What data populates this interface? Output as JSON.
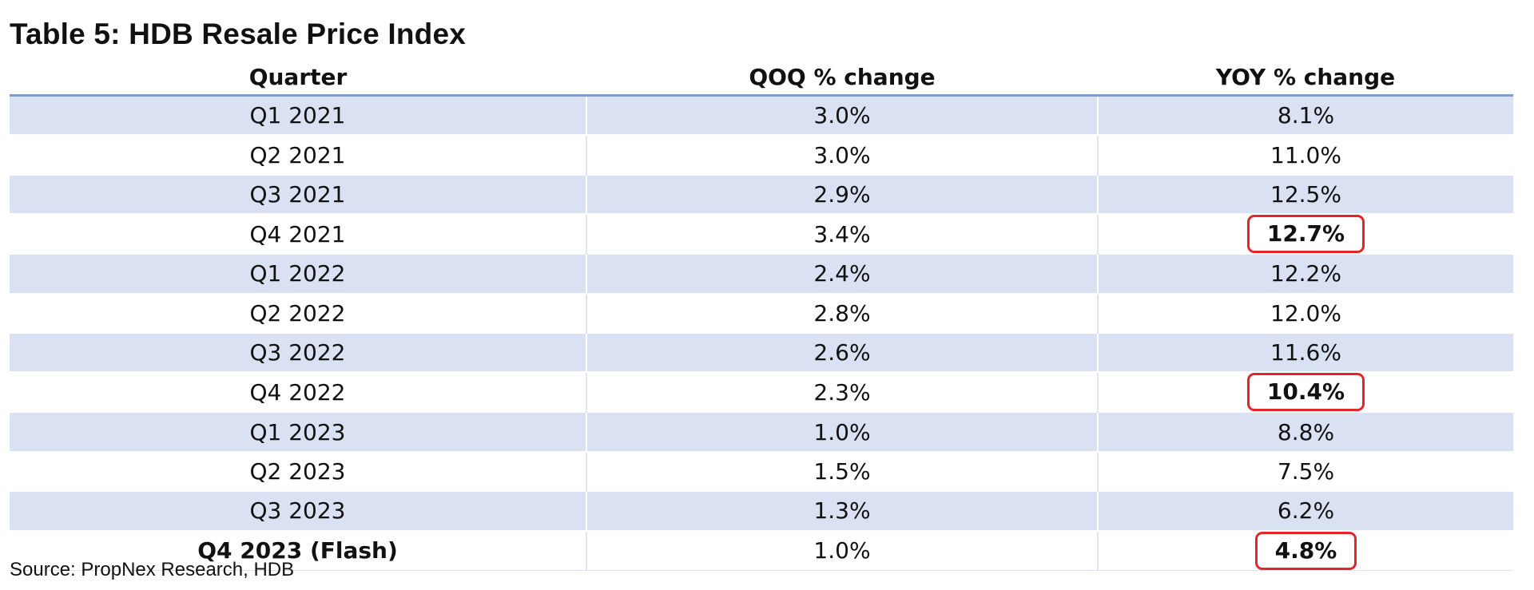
{
  "chart_data": {
    "type": "table",
    "title": "Table 5: HDB Resale Price Index",
    "columns": [
      "Quarter",
      "QOQ % change",
      "YOY % change"
    ],
    "rows": [
      {
        "quarter": "Q1 2021",
        "qoq": "3.0%",
        "yoy": "8.1%",
        "band": true,
        "bold": false,
        "highlight": false
      },
      {
        "quarter": "Q2 2021",
        "qoq": "3.0%",
        "yoy": "11.0%",
        "band": false,
        "bold": false,
        "highlight": false
      },
      {
        "quarter": "Q3 2021",
        "qoq": "2.9%",
        "yoy": "12.5%",
        "band": true,
        "bold": false,
        "highlight": false
      },
      {
        "quarter": "Q4 2021",
        "qoq": "3.4%",
        "yoy": "12.7%",
        "band": false,
        "bold": false,
        "highlight": true
      },
      {
        "quarter": "Q1 2022",
        "qoq": "2.4%",
        "yoy": "12.2%",
        "band": true,
        "bold": false,
        "highlight": false
      },
      {
        "quarter": "Q2 2022",
        "qoq": "2.8%",
        "yoy": "12.0%",
        "band": false,
        "bold": false,
        "highlight": false
      },
      {
        "quarter": "Q3 2022",
        "qoq": "2.6%",
        "yoy": "11.6%",
        "band": true,
        "bold": false,
        "highlight": false
      },
      {
        "quarter": "Q4 2022",
        "qoq": "2.3%",
        "yoy": "10.4%",
        "band": false,
        "bold": false,
        "highlight": true
      },
      {
        "quarter": "Q1 2023",
        "qoq": "1.0%",
        "yoy": "8.8%",
        "band": true,
        "bold": false,
        "highlight": false
      },
      {
        "quarter": "Q2 2023",
        "qoq": "1.5%",
        "yoy": "7.5%",
        "band": false,
        "bold": false,
        "highlight": false
      },
      {
        "quarter": "Q3 2023",
        "qoq": "1.3%",
        "yoy": "6.2%",
        "band": true,
        "bold": false,
        "highlight": false
      },
      {
        "quarter": "Q4 2023 (Flash)",
        "qoq": "1.0%",
        "yoy": "4.8%",
        "band": false,
        "bold": true,
        "highlight": true
      }
    ],
    "source": "Source: PropNex Research, HDB"
  },
  "colors": {
    "band": "#d9e1f2",
    "header_rule": "#7f9fd1",
    "highlight_border": "#e3242b",
    "text": "#111111"
  }
}
